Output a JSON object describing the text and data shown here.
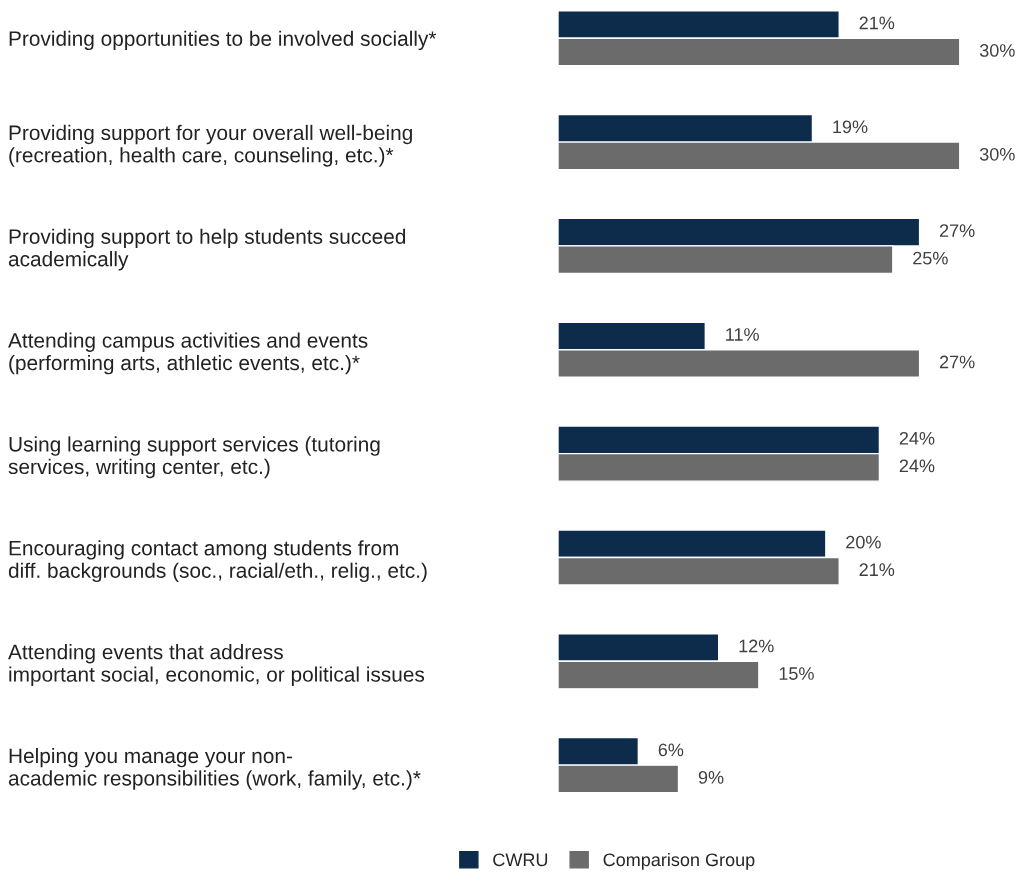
{
  "chart_data": {
    "type": "bar",
    "orientation": "horizontal",
    "categories": [
      "Providing opportunities to be involved socially*",
      "Providing support for your overall well-being\n(recreation, health care, counseling, etc.)*",
      "Providing support to help students succeed\nacademically",
      "Attending campus activities and events\n(performing arts, athletic events, etc.)*",
      "Using learning support services (tutoring\nservices, writing center, etc.)",
      "Encouraging contact among students from\ndiff. backgrounds (soc., racial/eth., relig., etc.)",
      "Attending events that address\nimportant social, economic, or political issues",
      "Helping you manage your non-\nacademic responsibilities (work, family, etc.)*"
    ],
    "series": [
      {
        "name": "CWRU",
        "color": "#0d2c4b",
        "values": [
          21,
          19,
          27,
          11,
          24,
          20,
          12,
          6
        ],
        "value_labels": [
          "21%",
          "19%",
          "27%",
          "11%",
          "24%",
          "20%",
          "12%",
          "6%"
        ]
      },
      {
        "name": "Comparison Group",
        "color": "#6b6b6b",
        "values": [
          30,
          30,
          25,
          27,
          24,
          21,
          15,
          9
        ],
        "value_labels": [
          "30%",
          "30%",
          "25%",
          "27%",
          "24%",
          "21%",
          "15%",
          "9%"
        ]
      }
    ],
    "tick_labels": "y",
    "grid": false,
    "legend": "bottom"
  }
}
